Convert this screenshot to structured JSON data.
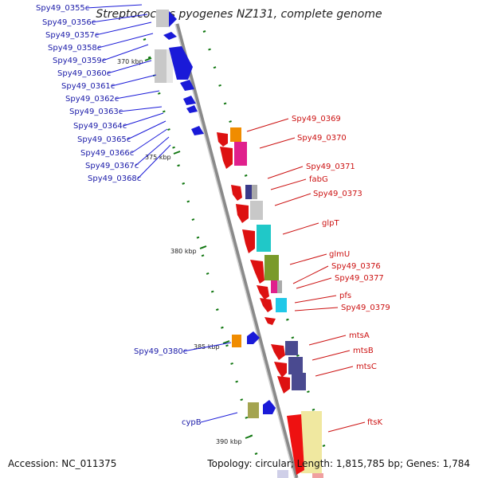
{
  "title": "Streptococcus pyogenes NZ131, complete genome",
  "footer": {
    "accession": "Accession: NC_011375",
    "summary": "Topology: circular; Length: 1,815,785 bp; Genes: 1,784"
  },
  "colors": {
    "reverse_strand": "#1a1aa8",
    "forward_strand": "#cc1111",
    "backbone": "#999999",
    "tick": "#117711"
  },
  "kbp_marks": [
    "370 kbp",
    "375 kbp",
    "380 kbp",
    "385 kbp",
    "390 kbp"
  ],
  "reverse_genes": [
    "Spy49_0355c",
    "Spy49_0356c",
    "Spy49_0357c",
    "Spy49_0358c",
    "Spy49_0359c",
    "Spy49_0360c",
    "Spy49_0361c",
    "Spy49_0362c",
    "Spy49_0363c",
    "Spy49_0364c",
    "Spy49_0365c",
    "Spy49_0366c",
    "Spy49_0367c",
    "Spy49_0368c",
    "Spy49_0380c",
    "cypB"
  ],
  "forward_genes": [
    "Spy49_0369",
    "Spy49_0370",
    "Spy49_0371",
    "fabG",
    "Spy49_0373",
    "glpT",
    "glmU",
    "Spy49_0376",
    "Spy49_0377",
    "pfs",
    "Spy49_0379",
    "mtsA",
    "mtsB",
    "mtsC",
    "ftsK"
  ]
}
